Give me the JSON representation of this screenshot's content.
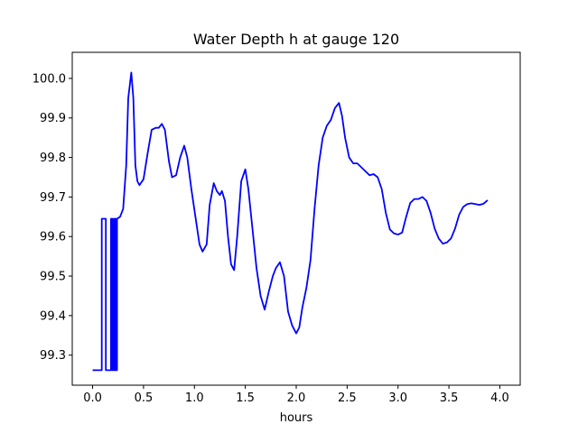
{
  "chart_data": {
    "type": "line",
    "title": "Water Depth h at gauge 120",
    "xlabel": "hours",
    "ylabel": "",
    "xlim": [
      -0.2,
      4.2
    ],
    "ylim": [
      99.224,
      100.066
    ],
    "x_ticks": [
      0.0,
      0.5,
      1.0,
      1.5,
      2.0,
      2.5,
      3.0,
      3.5,
      4.0
    ],
    "x_tick_labels": [
      "0.0",
      "0.5",
      "1.0",
      "1.5",
      "2.0",
      "2.5",
      "3.0",
      "3.5",
      "4.0"
    ],
    "y_ticks": [
      99.3,
      99.4,
      99.5,
      99.6,
      99.7,
      99.8,
      99.9,
      100.0
    ],
    "y_tick_labels": [
      "99.3",
      "99.4",
      "99.5",
      "99.6",
      "99.7",
      "99.8",
      "99.9",
      "100.0"
    ],
    "grid": false,
    "series": [
      {
        "color": "#0000ff",
        "points": [
          [
            0.0,
            99.262
          ],
          [
            0.09,
            99.262
          ],
          [
            0.09,
            99.645
          ],
          [
            0.13,
            99.645
          ],
          [
            0.13,
            99.262
          ],
          [
            0.18,
            99.262
          ],
          [
            0.18,
            99.645
          ],
          [
            0.19,
            99.645
          ],
          [
            0.19,
            99.262
          ],
          [
            0.2,
            99.262
          ],
          [
            0.2,
            99.645
          ],
          [
            0.21,
            99.645
          ],
          [
            0.21,
            99.262
          ],
          [
            0.22,
            99.262
          ],
          [
            0.22,
            99.645
          ],
          [
            0.23,
            99.645
          ],
          [
            0.23,
            99.262
          ],
          [
            0.24,
            99.262
          ],
          [
            0.24,
            99.645
          ],
          [
            0.27,
            99.65
          ],
          [
            0.3,
            99.67
          ],
          [
            0.33,
            99.78
          ],
          [
            0.35,
            99.95
          ],
          [
            0.38,
            100.015
          ],
          [
            0.4,
            99.95
          ],
          [
            0.42,
            99.78
          ],
          [
            0.44,
            99.74
          ],
          [
            0.46,
            99.73
          ],
          [
            0.5,
            99.745
          ],
          [
            0.54,
            99.81
          ],
          [
            0.58,
            99.87
          ],
          [
            0.62,
            99.875
          ],
          [
            0.65,
            99.875
          ],
          [
            0.68,
            99.885
          ],
          [
            0.71,
            99.87
          ],
          [
            0.75,
            99.79
          ],
          [
            0.78,
            99.75
          ],
          [
            0.82,
            99.755
          ],
          [
            0.86,
            99.8
          ],
          [
            0.9,
            99.83
          ],
          [
            0.93,
            99.8
          ],
          [
            0.97,
            99.72
          ],
          [
            1.01,
            99.65
          ],
          [
            1.05,
            99.58
          ],
          [
            1.08,
            99.562
          ],
          [
            1.12,
            99.58
          ],
          [
            1.15,
            99.68
          ],
          [
            1.19,
            99.735
          ],
          [
            1.22,
            99.715
          ],
          [
            1.25,
            99.705
          ],
          [
            1.27,
            99.715
          ],
          [
            1.3,
            99.69
          ],
          [
            1.33,
            99.6
          ],
          [
            1.36,
            99.53
          ],
          [
            1.39,
            99.515
          ],
          [
            1.42,
            99.6
          ],
          [
            1.46,
            99.74
          ],
          [
            1.5,
            99.77
          ],
          [
            1.53,
            99.72
          ],
          [
            1.57,
            99.62
          ],
          [
            1.61,
            99.52
          ],
          [
            1.65,
            99.45
          ],
          [
            1.69,
            99.415
          ],
          [
            1.73,
            99.46
          ],
          [
            1.77,
            99.5
          ],
          [
            1.8,
            99.52
          ],
          [
            1.84,
            99.535
          ],
          [
            1.88,
            99.5
          ],
          [
            1.92,
            99.41
          ],
          [
            1.96,
            99.375
          ],
          [
            2.0,
            99.355
          ],
          [
            2.03,
            99.37
          ],
          [
            2.06,
            99.42
          ],
          [
            2.1,
            99.47
          ],
          [
            2.14,
            99.54
          ],
          [
            2.18,
            99.67
          ],
          [
            2.22,
            99.78
          ],
          [
            2.26,
            99.85
          ],
          [
            2.3,
            99.88
          ],
          [
            2.34,
            99.895
          ],
          [
            2.38,
            99.925
          ],
          [
            2.42,
            99.938
          ],
          [
            2.45,
            99.905
          ],
          [
            2.48,
            99.85
          ],
          [
            2.52,
            99.8
          ],
          [
            2.56,
            99.785
          ],
          [
            2.6,
            99.785
          ],
          [
            2.64,
            99.775
          ],
          [
            2.68,
            99.765
          ],
          [
            2.72,
            99.755
          ],
          [
            2.76,
            99.758
          ],
          [
            2.8,
            99.75
          ],
          [
            2.84,
            99.72
          ],
          [
            2.88,
            99.66
          ],
          [
            2.92,
            99.618
          ],
          [
            2.96,
            99.608
          ],
          [
            3.0,
            99.605
          ],
          [
            3.04,
            99.61
          ],
          [
            3.08,
            99.65
          ],
          [
            3.12,
            99.685
          ],
          [
            3.16,
            99.695
          ],
          [
            3.2,
            99.695
          ],
          [
            3.24,
            99.7
          ],
          [
            3.28,
            99.69
          ],
          [
            3.32,
            99.66
          ],
          [
            3.36,
            99.62
          ],
          [
            3.4,
            99.595
          ],
          [
            3.44,
            99.582
          ],
          [
            3.48,
            99.585
          ],
          [
            3.52,
            99.595
          ],
          [
            3.56,
            99.62
          ],
          [
            3.6,
            99.655
          ],
          [
            3.64,
            99.675
          ],
          [
            3.68,
            99.682
          ],
          [
            3.72,
            99.684
          ],
          [
            3.76,
            99.682
          ],
          [
            3.8,
            99.68
          ],
          [
            3.84,
            99.683
          ],
          [
            3.88,
            99.692
          ]
        ]
      }
    ]
  }
}
